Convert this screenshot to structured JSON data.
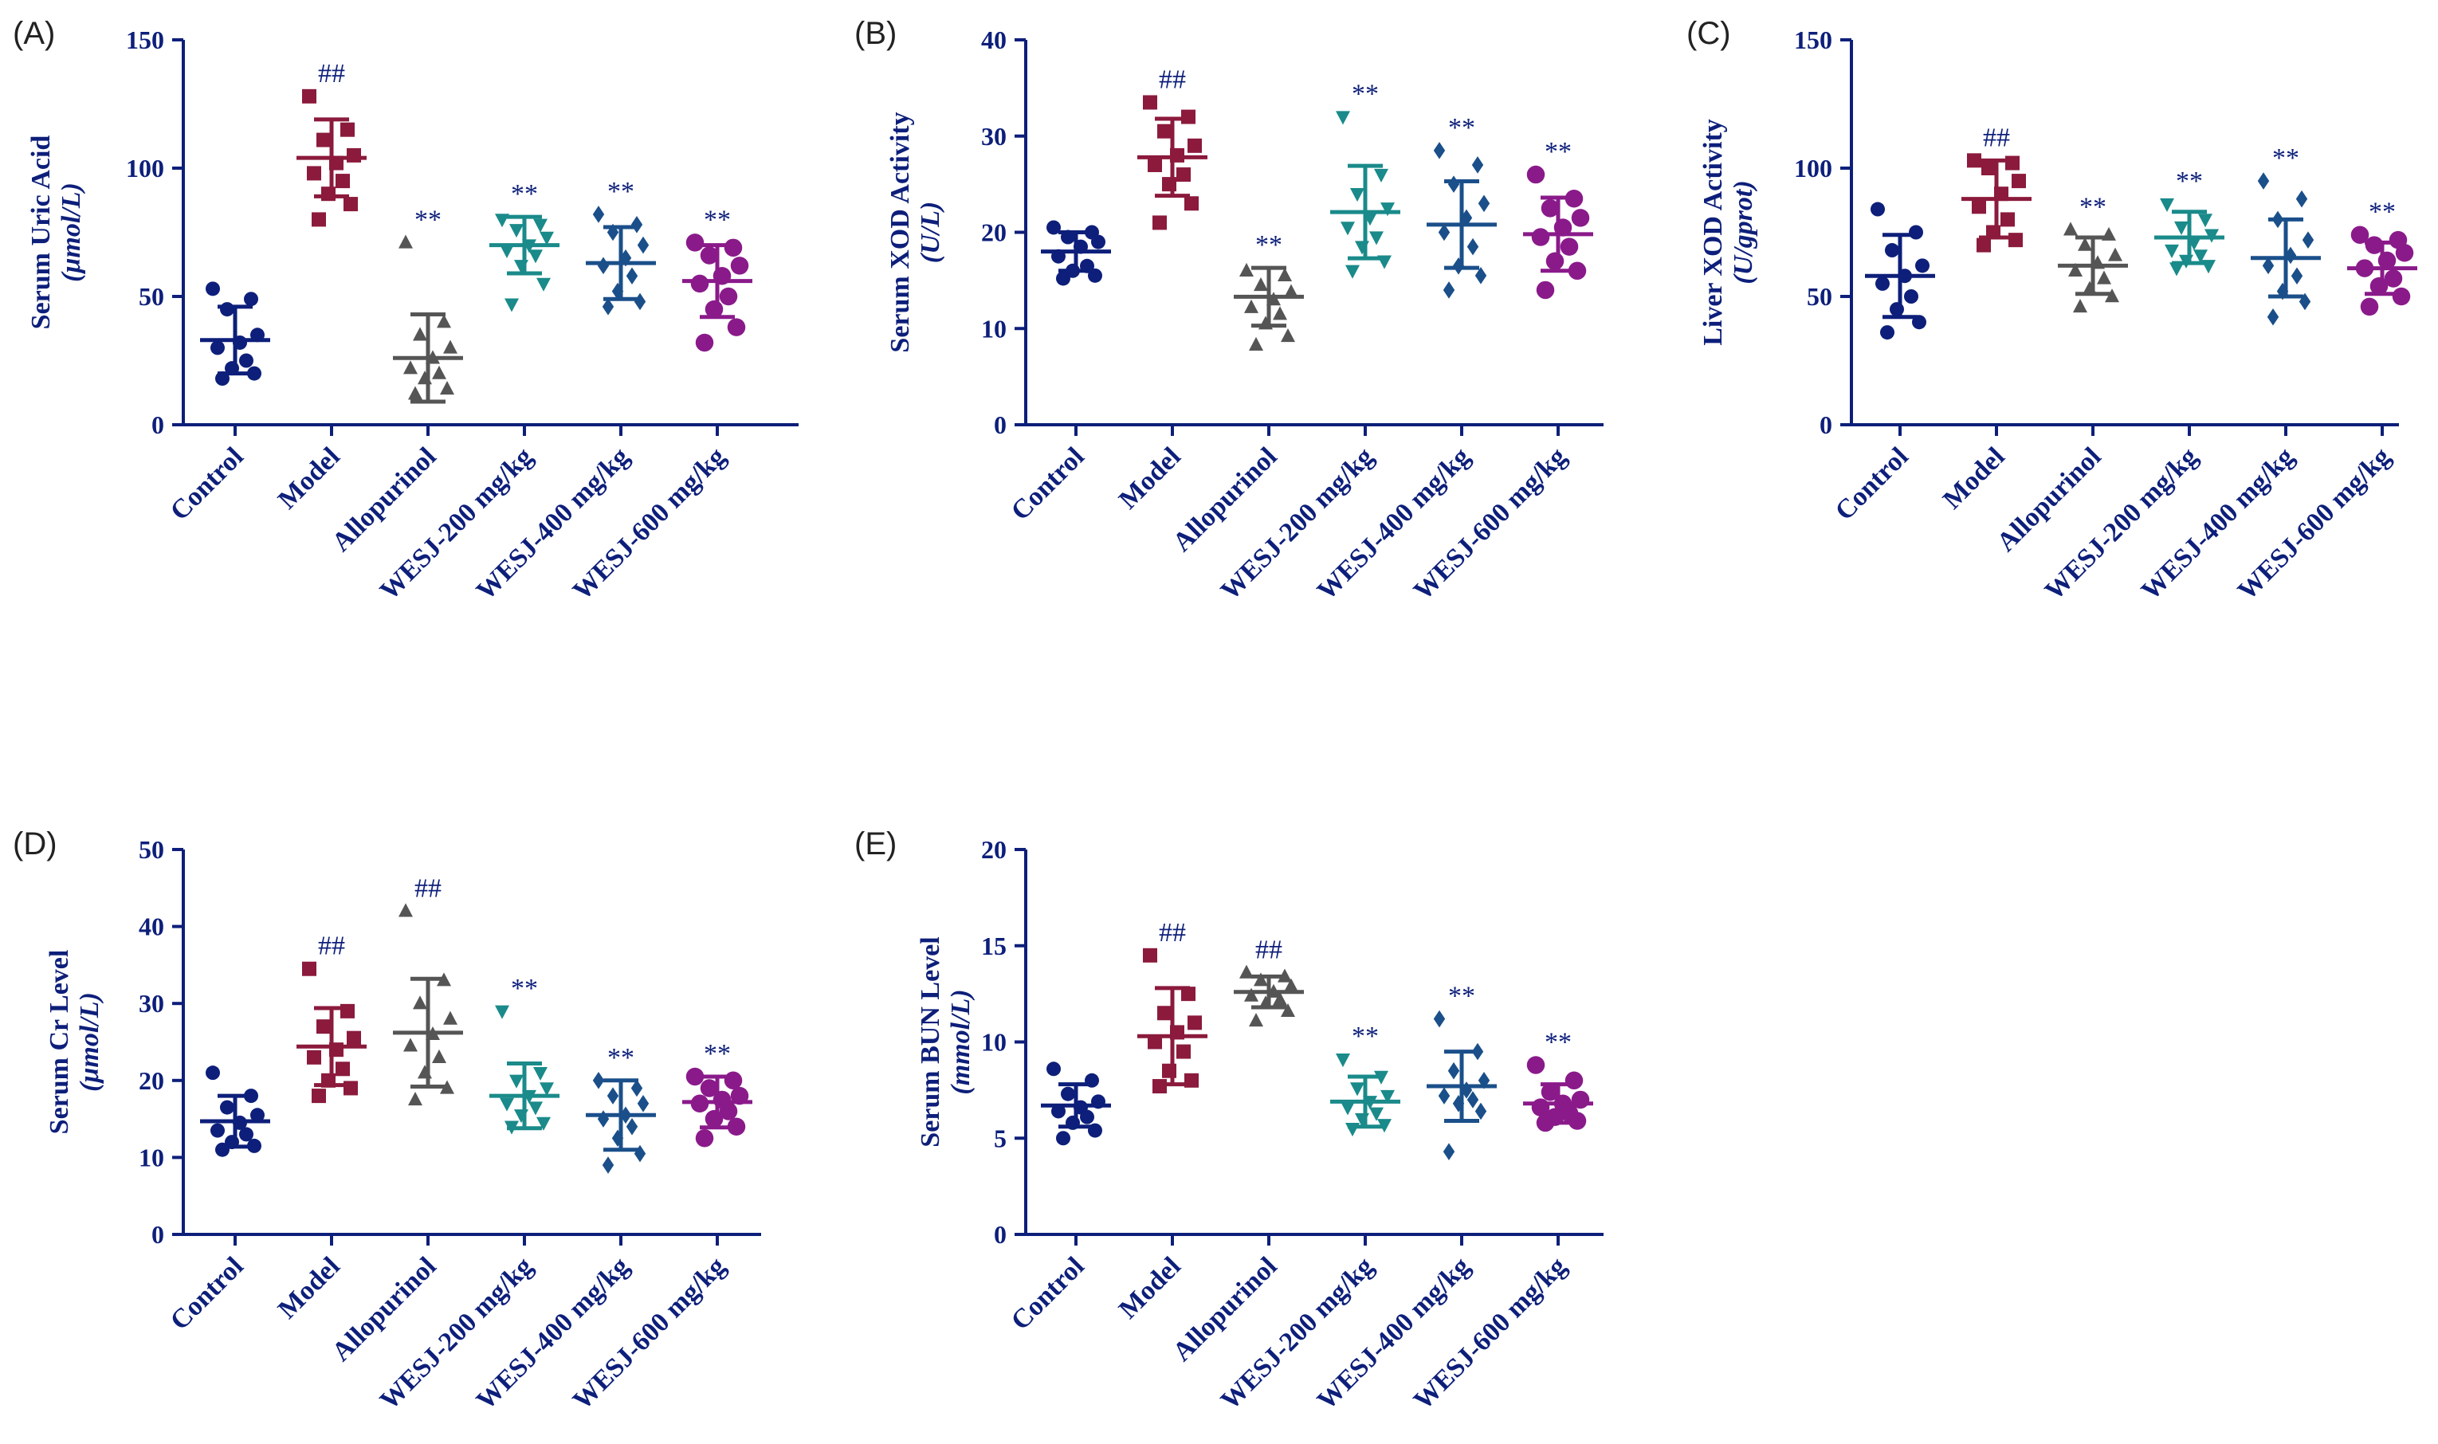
{
  "chart_data": [
    {
      "type": "scatter",
      "panel": "(A)",
      "ylabel": "Serum Uric Acid",
      "yunit": "(μmol/L)",
      "ylim": [
        0,
        150
      ],
      "yticks": [
        "0",
        "50",
        "100",
        "150"
      ],
      "categories": [
        "Control",
        "Model",
        "Allopurinol",
        "WESJ-200 mg/kg",
        "WESJ-400 mg/kg",
        "WESJ-600 mg/kg"
      ],
      "series": [
        {
          "name": "Control",
          "marker": "circle",
          "color": "#0d1f7a",
          "mean": 33,
          "sd": 13,
          "sig": "",
          "points": [
            53,
            49,
            45,
            35,
            32,
            30,
            25,
            22,
            20,
            18
          ]
        },
        {
          "name": "Model",
          "marker": "square",
          "color": "#8b1a3c",
          "mean": 104,
          "sd": 15,
          "sig": "##",
          "points": [
            128,
            115,
            111,
            105,
            102,
            98,
            95,
            90,
            86,
            80
          ]
        },
        {
          "name": "Allopurinol",
          "marker": "triangle-up",
          "color": "#555555",
          "mean": 26,
          "sd": 17,
          "sig": "**",
          "points": [
            71,
            40,
            35,
            30,
            26,
            22,
            20,
            18,
            14,
            12
          ]
        },
        {
          "name": "WESJ-200 mg/kg",
          "marker": "triangle-down",
          "color": "#1a8a8a",
          "mean": 70,
          "sd": 11,
          "sig": "**",
          "points": [
            80,
            78,
            76,
            73,
            70,
            68,
            66,
            62,
            55,
            47
          ]
        },
        {
          "name": "WESJ-400 mg/kg",
          "marker": "diamond",
          "color": "#1a4f8a",
          "mean": 63,
          "sd": 14,
          "sig": "**",
          "points": [
            82,
            78,
            75,
            70,
            65,
            62,
            58,
            52,
            48,
            46
          ]
        },
        {
          "name": "WESJ-600 mg/kg",
          "marker": "hexagon",
          "color": "#8a1a8a",
          "mean": 56,
          "sd": 14,
          "sig": "**",
          "points": [
            71,
            69,
            66,
            62,
            58,
            55,
            50,
            45,
            38,
            32
          ]
        }
      ]
    },
    {
      "type": "scatter",
      "panel": "(B)",
      "ylabel": "Serum XOD Activity",
      "yunit": "(U/L)",
      "ylim": [
        0,
        40
      ],
      "yticks": [
        "0",
        "10",
        "20",
        "30",
        "40"
      ],
      "categories": [
        "Control",
        "Model",
        "Allopurinol",
        "WESJ-200 mg/kg",
        "WESJ-400 mg/kg",
        "WESJ-600 mg/kg"
      ],
      "series": [
        {
          "name": "Control",
          "marker": "circle",
          "color": "#0d1f7a",
          "mean": 18,
          "sd": 2,
          "sig": "",
          "points": [
            20.5,
            20,
            19.5,
            19,
            18.5,
            17.5,
            16.5,
            16,
            15.5,
            15.2
          ]
        },
        {
          "name": "Model",
          "marker": "square",
          "color": "#8b1a3c",
          "mean": 27.8,
          "sd": 4,
          "sig": "##",
          "points": [
            33.5,
            32,
            30.5,
            29,
            28,
            27,
            26,
            25,
            23,
            21
          ]
        },
        {
          "name": "Allopurinol",
          "marker": "triangle-up",
          "color": "#555555",
          "mean": 13.3,
          "sd": 3,
          "sig": "**",
          "points": [
            16,
            15.5,
            14.5,
            13.8,
            13,
            12.2,
            11.5,
            10.5,
            9.2,
            8.3
          ]
        },
        {
          "name": "WESJ-200 mg/kg",
          "marker": "triangle-down",
          "color": "#1a8a8a",
          "mean": 22.1,
          "sd": 4.8,
          "sig": "**",
          "points": [
            32,
            26,
            24,
            22.5,
            21.5,
            20.5,
            19.5,
            18.5,
            17,
            16
          ]
        },
        {
          "name": "WESJ-400 mg/kg",
          "marker": "diamond",
          "color": "#1a4f8a",
          "mean": 20.8,
          "sd": 4.5,
          "sig": "**",
          "points": [
            28.5,
            27,
            25,
            23,
            21.5,
            20,
            18.5,
            16.5,
            15.5,
            14
          ]
        },
        {
          "name": "WESJ-600 mg/kg",
          "marker": "hexagon",
          "color": "#8a1a8a",
          "mean": 19.8,
          "sd": 3.8,
          "sig": "**",
          "points": [
            26,
            23.5,
            22.5,
            21.5,
            20.5,
            19.5,
            18.5,
            17,
            16,
            14
          ]
        }
      ]
    },
    {
      "type": "scatter",
      "panel": "(C)",
      "ylabel": "Liver XOD Activity",
      "yunit": "(U/gprot)",
      "ylim": [
        0,
        150
      ],
      "yticks": [
        "0",
        "50",
        "100",
        "150"
      ],
      "categories": [
        "Control",
        "Model",
        "Allopurinol",
        "WESJ-200 mg/kg",
        "WESJ-400 mg/kg",
        "WESJ-600 mg/kg"
      ],
      "series": [
        {
          "name": "Control",
          "marker": "circle",
          "color": "#0d1f7a",
          "mean": 58,
          "sd": 16,
          "sig": "",
          "points": [
            84,
            75,
            68,
            62,
            58,
            55,
            50,
            45,
            40,
            36
          ]
        },
        {
          "name": "Model",
          "marker": "square",
          "color": "#8b1a3c",
          "mean": 88,
          "sd": 15,
          "sig": "##",
          "points": [
            103,
            102,
            100,
            95,
            90,
            85,
            80,
            75,
            72,
            70
          ]
        },
        {
          "name": "Allopurinol",
          "marker": "triangle-up",
          "color": "#555555",
          "mean": 62,
          "sd": 11,
          "sig": "**",
          "points": [
            76,
            74,
            70,
            66,
            63,
            60,
            57,
            53,
            50,
            46
          ]
        },
        {
          "name": "WESJ-200 mg/kg",
          "marker": "triangle-down",
          "color": "#1a8a8a",
          "mean": 73,
          "sd": 10,
          "sig": "**",
          "points": [
            86,
            80,
            77,
            74,
            71,
            68,
            66,
            64,
            62,
            61
          ]
        },
        {
          "name": "WESJ-400 mg/kg",
          "marker": "diamond",
          "color": "#1a4f8a",
          "mean": 65,
          "sd": 15,
          "sig": "**",
          "points": [
            95,
            88,
            80,
            72,
            66,
            62,
            58,
            52,
            48,
            42
          ]
        },
        {
          "name": "WESJ-600 mg/kg",
          "marker": "hexagon",
          "color": "#8a1a8a",
          "mean": 61,
          "sd": 10,
          "sig": "**",
          "points": [
            74,
            72,
            70,
            67,
            64,
            61,
            57,
            54,
            50,
            46
          ]
        }
      ]
    },
    {
      "type": "scatter",
      "panel": "(D)",
      "ylabel": "Serum Cr Level",
      "yunit": "(μmol/L)",
      "ylim": [
        0,
        50
      ],
      "yticks": [
        "0",
        "10",
        "20",
        "30",
        "40",
        "50"
      ],
      "categories": [
        "Control",
        "Model",
        "Allopurinol",
        "WESJ-200 mg/kg",
        "WESJ-400 mg/kg",
        "WESJ-600 mg/kg"
      ],
      "series": [
        {
          "name": "Control",
          "marker": "circle",
          "color": "#0d1f7a",
          "mean": 14.7,
          "sd": 3.3,
          "sig": "",
          "points": [
            21,
            18,
            16.5,
            15.5,
            14.5,
            13.5,
            13,
            12,
            11.5,
            11
          ]
        },
        {
          "name": "Model",
          "marker": "square",
          "color": "#8b1a3c",
          "mean": 24.4,
          "sd": 5,
          "sig": "##",
          "points": [
            34.5,
            29,
            27,
            25.5,
            24,
            23,
            21.5,
            20,
            19,
            18
          ]
        },
        {
          "name": "Allopurinol",
          "marker": "triangle-up",
          "color": "#555555",
          "mean": 26.2,
          "sd": 7,
          "sig": "##",
          "points": [
            42,
            33,
            30,
            28,
            26,
            24.5,
            23,
            21,
            19,
            17.5
          ]
        },
        {
          "name": "WESJ-200 mg/kg",
          "marker": "triangle-down",
          "color": "#1a8a8a",
          "mean": 18,
          "sd": 4.2,
          "sig": "**",
          "points": [
            29,
            21,
            20,
            19,
            18,
            17,
            16.5,
            15.5,
            14.5,
            14
          ]
        },
        {
          "name": "WESJ-400 mg/kg",
          "marker": "diamond",
          "color": "#1a4f8a",
          "mean": 15.5,
          "sd": 4.5,
          "sig": "**",
          "points": [
            20,
            19,
            18,
            17,
            15.5,
            15,
            14,
            12.5,
            10.5,
            9
          ]
        },
        {
          "name": "WESJ-600 mg/kg",
          "marker": "hexagon",
          "color": "#8a1a8a",
          "mean": 17.2,
          "sd": 3.3,
          "sig": "**",
          "points": [
            20.5,
            20,
            19,
            18,
            17.5,
            17,
            16,
            15,
            14,
            12.5
          ]
        }
      ]
    },
    {
      "type": "scatter",
      "panel": "(E)",
      "ylabel": "Serum BUN Level",
      "yunit": "(mmol/L)",
      "ylim": [
        0,
        20
      ],
      "yticks": [
        "0",
        "5",
        "10",
        "15",
        "20"
      ],
      "categories": [
        "Control",
        "Model",
        "Allopurinol",
        "WESJ-200 mg/kg",
        "WESJ-400 mg/kg",
        "WESJ-600 mg/kg"
      ],
      "series": [
        {
          "name": "Control",
          "marker": "circle",
          "color": "#0d1f7a",
          "mean": 6.7,
          "sd": 1.1,
          "sig": "",
          "points": [
            8.6,
            8.0,
            7.3,
            6.9,
            6.6,
            6.4,
            6.1,
            5.8,
            5.4,
            5.0
          ]
        },
        {
          "name": "Model",
          "marker": "square",
          "color": "#8b1a3c",
          "mean": 10.3,
          "sd": 2.5,
          "sig": "##",
          "points": [
            14.5,
            12.5,
            11.5,
            11,
            10.5,
            10,
            9.5,
            8.5,
            8,
            7.7
          ]
        },
        {
          "name": "Allopurinol",
          "marker": "triangle-up",
          "color": "#555555",
          "mean": 12.6,
          "sd": 0.8,
          "sig": "##",
          "points": [
            13.6,
            13.4,
            13.2,
            12.9,
            12.6,
            12.4,
            12.2,
            12,
            11.6,
            11.1
          ]
        },
        {
          "name": "WESJ-200 mg/kg",
          "marker": "triangle-down",
          "color": "#1a8a8a",
          "mean": 6.9,
          "sd": 1.3,
          "sig": "**",
          "points": [
            9.1,
            8.2,
            7.6,
            7.2,
            6.9,
            6.6,
            6.3,
            6.0,
            5.7,
            5.5
          ]
        },
        {
          "name": "WESJ-400 mg/kg",
          "marker": "diamond",
          "color": "#1a4f8a",
          "mean": 7.7,
          "sd": 1.8,
          "sig": "**",
          "points": [
            11.2,
            9.5,
            8.5,
            8,
            7.5,
            7.2,
            7,
            6.8,
            6.4,
            4.3
          ]
        },
        {
          "name": "WESJ-600 mg/kg",
          "marker": "hexagon",
          "color": "#8a1a8a",
          "mean": 6.8,
          "sd": 1.0,
          "sig": "**",
          "points": [
            8.8,
            8.0,
            7.4,
            7.0,
            6.8,
            6.6,
            6.3,
            6.1,
            5.9,
            5.8
          ]
        }
      ]
    }
  ]
}
